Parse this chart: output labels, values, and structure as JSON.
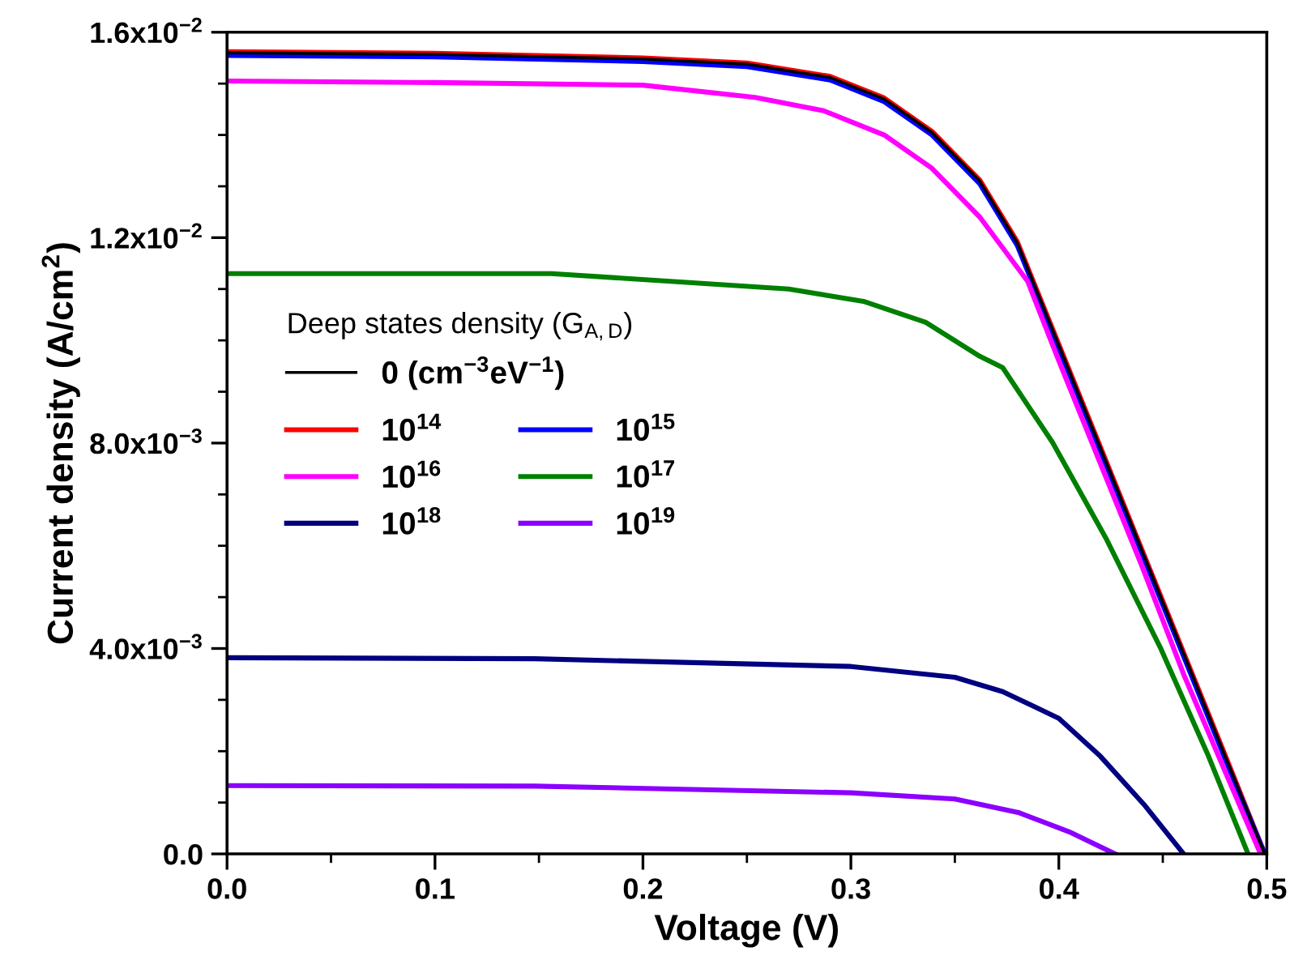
{
  "chart_data": {
    "type": "line",
    "xlabel": "Voltage (V)",
    "ylabel": "Current density (A/cm$^{2}$)",
    "legend_title": "Deep states density (G$_{A,D}$)",
    "legend": "left",
    "grid": false,
    "marker": "none",
    "line_style": "solid",
    "xlim": [
      0,
      0.5
    ],
    "ylim": [
      0,
      0.016
    ],
    "xticks": [
      {
        "value": 0,
        "label": "0.0"
      },
      {
        "value": 0.05,
        "label": null
      },
      0.1,
      {
        "value": 0.15,
        "label": null
      },
      0.2,
      {
        "value": 0.25,
        "label": null
      },
      0.3,
      {
        "value": 0.35,
        "label": null
      },
      0.4,
      {
        "value": 0.45,
        "label": null
      },
      0.5
    ],
    "yticks": [
      {
        "value": 0,
        "label": "0.0"
      },
      {
        "value": 0.001,
        "label": null
      },
      {
        "value": 0.002,
        "label": null
      },
      {
        "value": 0.003,
        "label": null
      },
      {
        "value": 0.004,
        "label": "4.0x10$^{−3}$"
      },
      {
        "value": 0.005,
        "label": null
      },
      {
        "value": 0.006,
        "label": null
      },
      {
        "value": 0.007,
        "label": null
      },
      {
        "value": 0.008,
        "label": "8.0x10$^{−3}$"
      },
      {
        "value": 0.009,
        "label": null
      },
      {
        "value": 0.01,
        "label": null
      },
      {
        "value": 0.011,
        "label": null
      },
      {
        "value": 0.012,
        "label": "1.2x10$^{−2}$"
      },
      {
        "value": 0.013,
        "label": null
      },
      {
        "value": 0.014,
        "label": null
      },
      {
        "value": 0.015,
        "label": null
      },
      {
        "value": 0.016,
        "label": "1.6x10$^{−2}$"
      }
    ],
    "series": [
      {
        "name": "0 (cm$^{−3}$eV$^{−1}$)",
        "color": "#000000",
        "x": [
          0,
          0.1,
          0.2,
          0.25,
          0.29,
          0.316,
          0.339,
          0.362,
          0.38,
          0.4,
          0.42,
          0.44,
          0.46,
          0.48,
          0.499
        ],
        "values": [
          0.0156,
          0.01557,
          0.01548,
          0.01538,
          0.01512,
          0.0147,
          0.01405,
          0.0131,
          0.0119,
          0.0099,
          0.0079,
          0.0059,
          0.0039,
          0.0019,
          0
        ]
      },
      {
        "name": "10$^{14}$",
        "color": "#ff0000",
        "x": [
          0,
          0.1,
          0.2,
          0.25,
          0.29,
          0.316,
          0.339,
          0.362,
          0.38,
          0.4,
          0.42,
          0.44,
          0.46,
          0.48,
          0.499
        ],
        "values": [
          0.01562,
          0.01559,
          0.0155,
          0.0154,
          0.01514,
          0.01472,
          0.01407,
          0.01312,
          0.01192,
          0.00992,
          0.00792,
          0.00592,
          0.00392,
          0.00192,
          0
        ]
      },
      {
        "name": "10$^{15}$",
        "color": "#0000ff",
        "x": [
          0,
          0.1,
          0.2,
          0.25,
          0.29,
          0.316,
          0.339,
          0.362,
          0.38,
          0.4,
          0.42,
          0.44,
          0.46,
          0.48,
          0.499
        ],
        "values": [
          0.01555,
          0.01552,
          0.01543,
          0.01533,
          0.01507,
          0.01465,
          0.014,
          0.01305,
          0.01185,
          0.00985,
          0.00785,
          0.00585,
          0.00385,
          0.00185,
          0
        ]
      },
      {
        "name": "10$^{16}$",
        "color": "#ff00ff",
        "x": [
          0,
          0.1,
          0.2,
          0.254,
          0.287,
          0.316,
          0.339,
          0.362,
          0.385,
          0.4,
          0.42,
          0.44,
          0.46,
          0.48,
          0.497
        ],
        "values": [
          0.01505,
          0.01502,
          0.01497,
          0.01473,
          0.01447,
          0.014,
          0.01335,
          0.0124,
          0.01115,
          0.0096,
          0.0076,
          0.0056,
          0.0035,
          0.0016,
          0
        ]
      },
      {
        "name": "10$^{17}$",
        "color": "#008000",
        "x": [
          0,
          0.1,
          0.156,
          0.27,
          0.306,
          0.336,
          0.362,
          0.373,
          0.397,
          0.423,
          0.449,
          0.472,
          0.491
        ],
        "values": [
          0.0113,
          0.0113,
          0.0113,
          0.011,
          0.01076,
          0.01035,
          0.00969,
          0.00947,
          0.00801,
          0.00612,
          0.004,
          0.0019,
          0
        ]
      },
      {
        "name": "10$^{18}$",
        "color": "#000080",
        "x": [
          0,
          0.148,
          0.3,
          0.35,
          0.373,
          0.4,
          0.42,
          0.441,
          0.46
        ],
        "values": [
          0.00382,
          0.0038,
          0.00365,
          0.00344,
          0.00316,
          0.00264,
          0.0019,
          0.00096,
          0
        ]
      },
      {
        "name": "10$^{19}$",
        "color": "#8b00ff",
        "x": [
          0,
          0.148,
          0.3,
          0.35,
          0.381,
          0.405,
          0.427
        ],
        "values": [
          0.00133,
          0.00132,
          0.00119,
          0.00107,
          0.0008,
          0.00043,
          0
        ]
      }
    ]
  }
}
